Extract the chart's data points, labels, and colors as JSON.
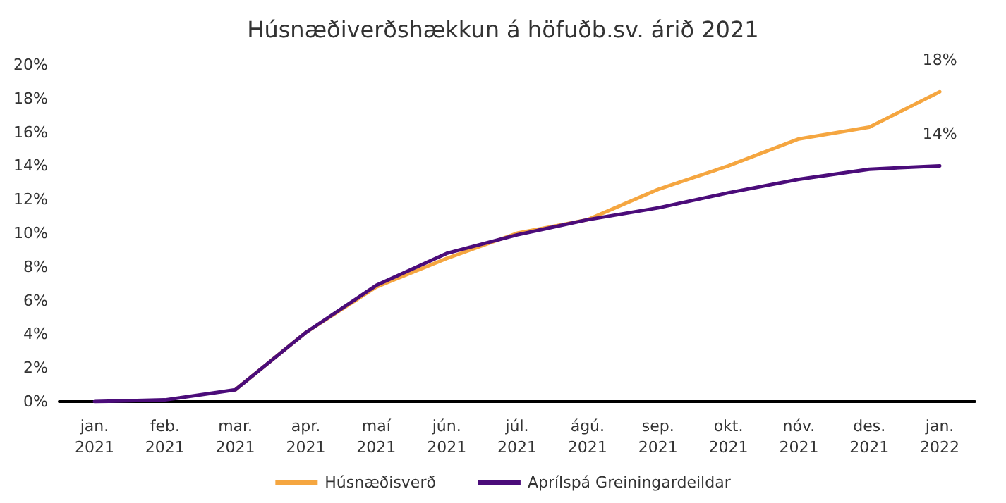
{
  "chart_data": {
    "type": "line",
    "title": "Húsnæðiverðshækkun á höfuðb.sv. árið 2021",
    "categories": [
      "jan.\n2021",
      "feb.\n2021",
      "mar.\n2021",
      "apr.\n2021",
      "maí\n2021",
      "jún.\n2021",
      "júl.\n2021",
      "ágú.\n2021",
      "sep.\n2021",
      "okt.\n2021",
      "nóv.\n2021",
      "des.\n2021",
      "jan.\n2022"
    ],
    "series": [
      {
        "name": "Húsnæðisverð",
        "color": "#f5a640",
        "values": [
          null,
          null,
          0.7,
          4.1,
          6.8,
          8.5,
          10.0,
          10.8,
          12.6,
          14.0,
          15.6,
          16.3,
          18.4
        ],
        "value_labels": [
          null,
          null,
          null,
          null,
          null,
          null,
          null,
          null,
          null,
          null,
          null,
          null,
          "18%"
        ]
      },
      {
        "name": "Aprílspá Greiningardeildar",
        "color": "#4b0c7a",
        "values": [
          0,
          0.1,
          0.7,
          4.1,
          6.9,
          8.8,
          9.9,
          10.8,
          11.5,
          12.4,
          13.2,
          13.8,
          14.0
        ],
        "value_labels": [
          null,
          null,
          null,
          null,
          null,
          null,
          null,
          null,
          null,
          null,
          null,
          null,
          "14%"
        ]
      }
    ],
    "ylim": [
      0,
      20
    ],
    "yticks": [
      {
        "value": 0,
        "label": "0%"
      },
      {
        "value": 2,
        "label": "2%"
      },
      {
        "value": 4,
        "label": "4%"
      },
      {
        "value": 6,
        "label": "6%"
      },
      {
        "value": 8,
        "label": "8%"
      },
      {
        "value": 10,
        "label": "10%"
      },
      {
        "value": 12,
        "label": "12%"
      },
      {
        "value": 14,
        "label": "14%"
      },
      {
        "value": 16,
        "label": "16%"
      },
      {
        "value": 18,
        "label": "18%"
      },
      {
        "value": 20,
        "label": "20%"
      }
    ],
    "grid": false,
    "legend": "bottom",
    "marker": "none",
    "line_style": "solid"
  }
}
